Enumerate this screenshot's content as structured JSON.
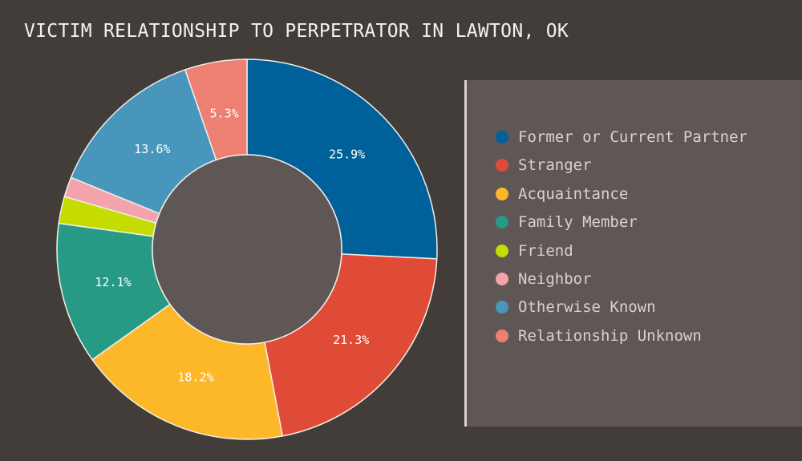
{
  "title": "VICTIM RELATIONSHIP TO PERPETRATOR IN LAWTON, OK",
  "chart_data": {
    "type": "pie",
    "title": "VICTIM RELATIONSHIP TO PERPETRATOR IN LAWTON, OK",
    "donut": true,
    "legend_position": "right",
    "slices": [
      {
        "label": "Former or Current Partner",
        "value": 25.9,
        "display": "25.9%",
        "color": "#00619a"
      },
      {
        "label": "Stranger",
        "value": 21.3,
        "display": "21.3%",
        "color": "#e04b37"
      },
      {
        "label": "Acquaintance",
        "value": 18.2,
        "display": "18.2%",
        "color": "#fdb82a"
      },
      {
        "label": "Family Member",
        "value": 12.1,
        "display": "12.1%",
        "color": "#279a86"
      },
      {
        "label": "Friend",
        "value": 2.3,
        "display": "",
        "color": "#c4dc00"
      },
      {
        "label": "Neighbor",
        "value": 1.7,
        "display": "",
        "color": "#f3a3ac"
      },
      {
        "label": "Otherwise Known",
        "value": 13.6,
        "display": "13.6%",
        "color": "#4896bb"
      },
      {
        "label": "Relationship Unknown",
        "value": 5.3,
        "display": "5.3%",
        "color": "#ed7f73"
      }
    ]
  }
}
